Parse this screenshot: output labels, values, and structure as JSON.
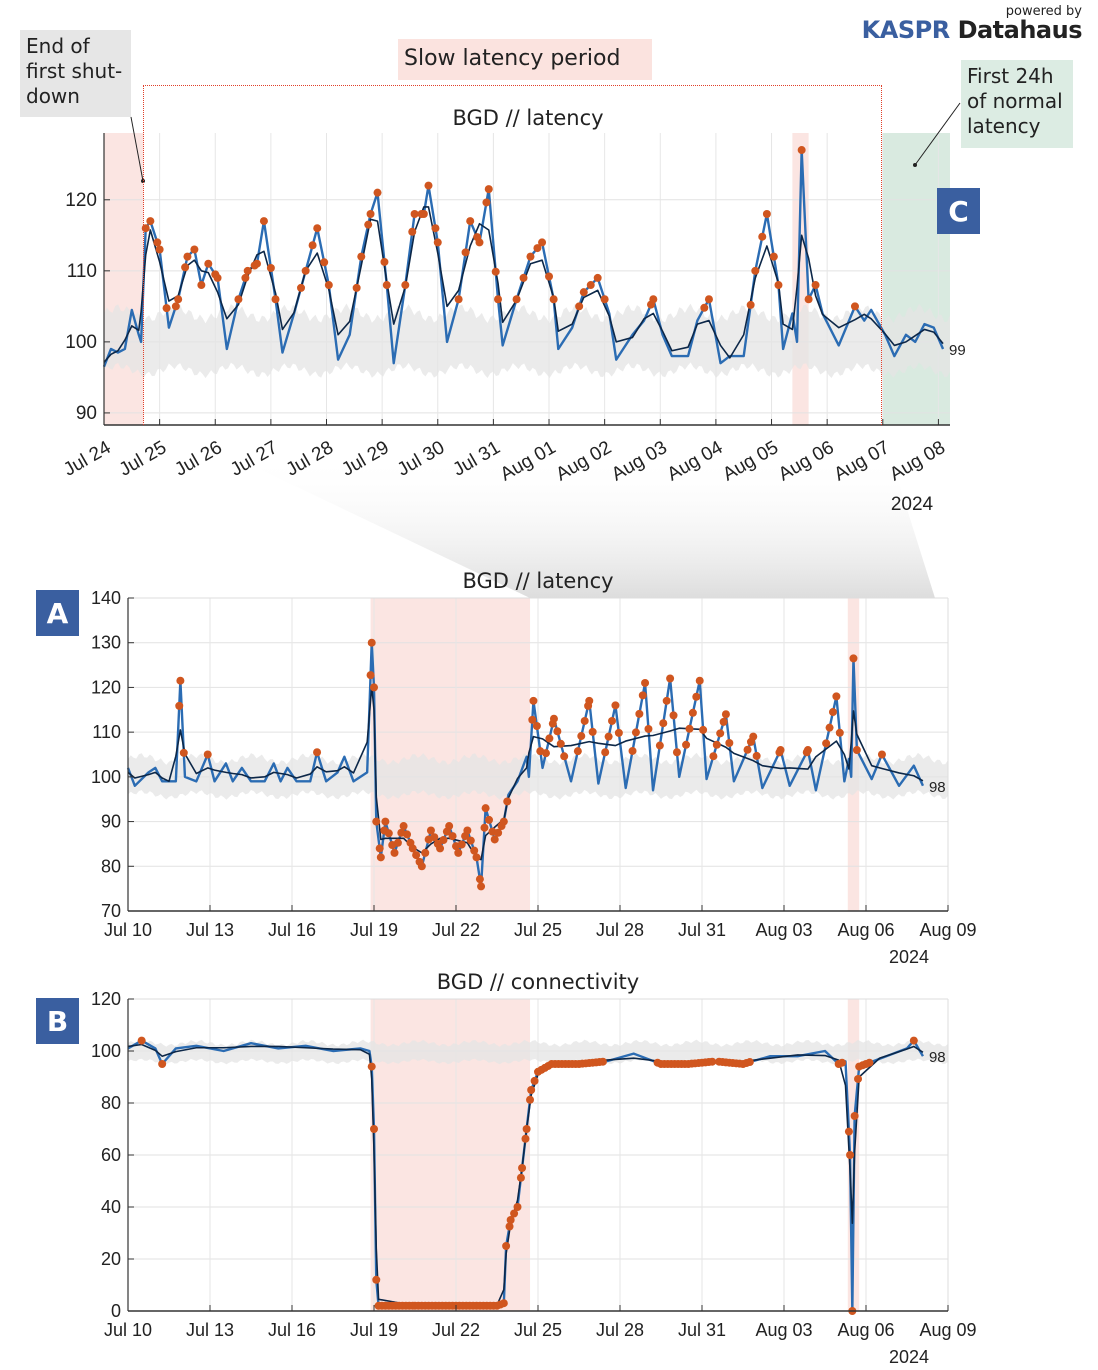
{
  "logo": {
    "powered_by": "powered by",
    "brand_a": "KASPR",
    "brand_b": "Datahaus"
  },
  "annotations": {
    "end_shutdown": "End of first shut-down",
    "slow_period": "Slow latency period",
    "first_24h": "First 24h of normal latency",
    "badge_a": "A",
    "badge_b": "B",
    "badge_c": "C"
  },
  "colors": {
    "raw_line": "#2b6cb3",
    "smooth_line": "#0c2748",
    "anomaly": "#d0561f",
    "band": "#e4e4e4",
    "outage_shade": "#f9dcd8",
    "normal_shade": "#cfe5d8",
    "badge": "#3a5fa0"
  },
  "chart_data": [
    {
      "id": "C",
      "type": "line",
      "title": "BGD // latency",
      "year_label": "2024",
      "xlim": [
        "07-24 00:00",
        "08-08 05:00"
      ],
      "ylim": [
        88.3,
        129.4
      ],
      "yticks": [
        90,
        100,
        110,
        120
      ],
      "xticks": [
        [
          "07-24 00:00",
          "Jul 24"
        ],
        [
          "07-25 00:00",
          "Jul 25"
        ],
        [
          "07-26 00:00",
          "Jul 26"
        ],
        [
          "07-27 00:00",
          "Jul 27"
        ],
        [
          "07-28 00:00",
          "Jul 28"
        ],
        [
          "07-29 00:00",
          "Jul 29"
        ],
        [
          "07-30 00:00",
          "Jul 30"
        ],
        [
          "07-31 00:00",
          "Jul 31"
        ],
        [
          "08-01 00:00",
          "Aug 01"
        ],
        [
          "08-02 00:00",
          "Aug 02"
        ],
        [
          "08-03 00:00",
          "Aug 03"
        ],
        [
          "08-04 00:00",
          "Aug 04"
        ],
        [
          "08-05 00:00",
          "Aug 05"
        ],
        [
          "08-06 00:00",
          "Aug 06"
        ],
        [
          "08-07 00:00",
          "Aug 07"
        ],
        [
          "08-08 00:00",
          "Aug 08"
        ]
      ],
      "tick_rotation": "diagonal",
      "grid": true,
      "band": [
        96,
        104
      ],
      "anomaly_rule": {
        "above": 104.5
      },
      "last_value_label": "99",
      "shaded": [
        {
          "from": "07-24 00:00",
          "to": "07-24 17:00",
          "kind": "outage"
        },
        {
          "from": "08-05 09:00",
          "to": "08-05 16:00",
          "kind": "outage"
        },
        {
          "from": "08-07 00:00",
          "to": "08-08 05:00",
          "kind": "normal"
        }
      ],
      "series": [
        [
          "07-24 00:00",
          96.5
        ],
        [
          "07-24 03:00",
          99
        ],
        [
          "07-24 06:00",
          98.5
        ],
        [
          "07-24 09:00",
          99
        ],
        [
          "07-24 12:00",
          104.5
        ],
        [
          "07-24 15:00",
          101
        ],
        [
          "07-24 16:00",
          100
        ],
        [
          "07-24 18:00",
          116
        ],
        [
          "07-24 20:00",
          117
        ],
        [
          "07-25 00:00",
          113
        ],
        [
          "07-25 04:00",
          102
        ],
        [
          "07-25 08:00",
          106
        ],
        [
          "07-25 12:00",
          112
        ],
        [
          "07-25 15:00",
          113
        ],
        [
          "07-25 18:00",
          108
        ],
        [
          "07-25 21:00",
          111
        ],
        [
          "07-26 01:00",
          109
        ],
        [
          "07-26 05:00",
          99
        ],
        [
          "07-26 10:00",
          106
        ],
        [
          "07-26 14:00",
          110
        ],
        [
          "07-26 18:00",
          111
        ],
        [
          "07-26 21:00",
          117
        ],
        [
          "07-27 02:00",
          106
        ],
        [
          "07-27 05:00",
          98.5
        ],
        [
          "07-27 10:00",
          104
        ],
        [
          "07-27 15:00",
          110
        ],
        [
          "07-27 20:00",
          116
        ],
        [
          "07-28 01:00",
          108
        ],
        [
          "07-28 05:00",
          97.5
        ],
        [
          "07-28 10:00",
          101
        ],
        [
          "07-28 15:00",
          112
        ],
        [
          "07-28 19:00",
          118
        ],
        [
          "07-28 22:00",
          121
        ],
        [
          "07-29 02:00",
          108
        ],
        [
          "07-29 05:00",
          97
        ],
        [
          "07-29 10:00",
          108
        ],
        [
          "07-29 14:00",
          118
        ],
        [
          "07-29 18:00",
          118
        ],
        [
          "07-29 20:00",
          122
        ],
        [
          "07-30 00:00",
          114
        ],
        [
          "07-30 04:00",
          100
        ],
        [
          "07-30 09:00",
          106
        ],
        [
          "07-30 14:00",
          117
        ],
        [
          "07-30 18:00",
          114
        ],
        [
          "07-30 22:00",
          121.5
        ],
        [
          "07-31 02:00",
          106
        ],
        [
          "07-31 04:00",
          99.5
        ],
        [
          "07-31 10:00",
          106
        ],
        [
          "07-31 16:00",
          112
        ],
        [
          "07-31 21:00",
          114
        ],
        [
          "08-01 02:00",
          106
        ],
        [
          "08-01 04:00",
          99
        ],
        [
          "08-01 10:00",
          102
        ],
        [
          "08-01 15:00",
          107
        ],
        [
          "08-01 21:00",
          109
        ],
        [
          "08-02 02:00",
          104
        ],
        [
          "08-02 05:00",
          97.5
        ],
        [
          "08-02 12:00",
          101
        ],
        [
          "08-02 17:00",
          103
        ],
        [
          "08-02 21:00",
          106
        ],
        [
          "08-03 01:00",
          101
        ],
        [
          "08-03 05:00",
          98
        ],
        [
          "08-03 12:00",
          98
        ],
        [
          "08-03 16:00",
          103
        ],
        [
          "08-03 21:00",
          106
        ],
        [
          "08-04 02:00",
          97
        ],
        [
          "08-04 06:00",
          98
        ],
        [
          "08-04 12:00",
          98
        ],
        [
          "08-04 17:00",
          110
        ],
        [
          "08-04 22:00",
          118
        ],
        [
          "08-05 03:00",
          108
        ],
        [
          "08-05 05:00",
          99
        ],
        [
          "08-05 09:00",
          104
        ],
        [
          "08-05 11:00",
          100
        ],
        [
          "08-05 13:00",
          127
        ],
        [
          "08-05 16:00",
          106
        ],
        [
          "08-05 19:00",
          108
        ],
        [
          "08-05 22:00",
          104
        ],
        [
          "08-06 05:00",
          99.5
        ],
        [
          "08-06 12:00",
          105
        ],
        [
          "08-06 16:00",
          103
        ],
        [
          "08-06 19:00",
          104.5
        ],
        [
          "08-07 01:00",
          101
        ],
        [
          "08-07 05:00",
          98
        ],
        [
          "08-07 10:00",
          101
        ],
        [
          "08-07 14:00",
          100
        ],
        [
          "08-07 18:00",
          102.5
        ],
        [
          "08-07 22:00",
          102
        ],
        [
          "08-08 02:00",
          99
        ]
      ]
    },
    {
      "id": "A",
      "type": "line",
      "title": "BGD // latency",
      "year_label": "2024",
      "xlim": [
        "07-10 00:00",
        "08-09 00:00"
      ],
      "ylim": [
        70,
        140
      ],
      "yticks": [
        70,
        80,
        90,
        100,
        110,
        120,
        130,
        140
      ],
      "xticks": [
        [
          "07-10 00:00",
          "Jul 10"
        ],
        [
          "07-13 00:00",
          "Jul 13"
        ],
        [
          "07-16 00:00",
          "Jul 16"
        ],
        [
          "07-19 00:00",
          "Jul 19"
        ],
        [
          "07-22 00:00",
          "Jul 22"
        ],
        [
          "07-25 00:00",
          "Jul 25"
        ],
        [
          "07-28 00:00",
          "Jul 28"
        ],
        [
          "07-31 00:00",
          "Jul 31"
        ],
        [
          "08-03 00:00",
          "Aug 03"
        ],
        [
          "08-06 00:00",
          "Aug 06"
        ],
        [
          "08-09 00:00",
          "Aug 09"
        ]
      ],
      "grid": true,
      "band": [
        96,
        104
      ],
      "anomaly_rule": {
        "above": 104.5,
        "below": 95.5
      },
      "last_value_label": "98",
      "shaded": [
        {
          "from": "07-18 21:00",
          "to": "07-24 17:00",
          "kind": "outage"
        },
        {
          "from": "08-05 08:00",
          "to": "08-05 18:00",
          "kind": "outage"
        }
      ],
      "series": [
        [
          "07-10 00:00",
          102
        ],
        [
          "07-10 06:00",
          98
        ],
        [
          "07-10 18:00",
          101
        ],
        [
          "07-11 00:00",
          102
        ],
        [
          "07-11 06:00",
          99
        ],
        [
          "07-11 12:00",
          99
        ],
        [
          "07-11 18:00",
          99
        ],
        [
          "07-11 22:00",
          121.5
        ],
        [
          "07-12 02:00",
          100
        ],
        [
          "07-12 12:00",
          99
        ],
        [
          "07-12 22:00",
          105
        ],
        [
          "07-13 04:00",
          99
        ],
        [
          "07-13 14:00",
          103
        ],
        [
          "07-13 20:00",
          99
        ],
        [
          "07-14 04:00",
          102
        ],
        [
          "07-14 12:00",
          99
        ],
        [
          "07-15 00:00",
          99
        ],
        [
          "07-15 08:00",
          103
        ],
        [
          "07-15 14:00",
          99
        ],
        [
          "07-15 20:00",
          102
        ],
        [
          "07-16 04:00",
          99
        ],
        [
          "07-16 16:00",
          99
        ],
        [
          "07-16 22:00",
          105.5
        ],
        [
          "07-17 06:00",
          99
        ],
        [
          "07-17 16:00",
          101
        ],
        [
          "07-17 22:00",
          104.5
        ],
        [
          "07-18 06:00",
          99
        ],
        [
          "07-18 18:00",
          101
        ],
        [
          "07-18 22:00",
          130
        ],
        [
          "07-19 00:00",
          120
        ],
        [
          "07-19 02:00",
          90
        ],
        [
          "07-19 06:00",
          82
        ],
        [
          "07-19 10:00",
          90
        ],
        [
          "07-19 18:00",
          83
        ],
        [
          "07-20 02:00",
          89
        ],
        [
          "07-20 10:00",
          84
        ],
        [
          "07-20 18:00",
          80
        ],
        [
          "07-21 02:00",
          88
        ],
        [
          "07-21 10:00",
          84
        ],
        [
          "07-21 18:00",
          89
        ],
        [
          "07-22 02:00",
          83
        ],
        [
          "07-22 10:00",
          88
        ],
        [
          "07-22 18:00",
          82
        ],
        [
          "07-22 22:00",
          75.5
        ],
        [
          "07-23 02:00",
          93
        ],
        [
          "07-23 10:00",
          86
        ],
        [
          "07-23 18:00",
          90
        ],
        [
          "07-23 22:00",
          96
        ],
        [
          "07-24 06:00",
          99
        ],
        [
          "07-24 14:00",
          104.5
        ],
        [
          "07-24 16:00",
          100
        ],
        [
          "07-24 20:00",
          117
        ],
        [
          "07-25 04:00",
          102
        ],
        [
          "07-25 14:00",
          113
        ],
        [
          "07-26 05:00",
          99
        ],
        [
          "07-26 21:00",
          117
        ],
        [
          "07-27 05:00",
          98.5
        ],
        [
          "07-27 20:00",
          116
        ],
        [
          "07-28 05:00",
          97.5
        ],
        [
          "07-28 22:00",
          121
        ],
        [
          "07-29 05:00",
          97
        ],
        [
          "07-29 20:00",
          122
        ],
        [
          "07-30 04:00",
          100
        ],
        [
          "07-30 22:00",
          121.5
        ],
        [
          "07-31 04:00",
          99.5
        ],
        [
          "07-31 21:00",
          114
        ],
        [
          "08-01 04:00",
          99
        ],
        [
          "08-01 21:00",
          109
        ],
        [
          "08-02 05:00",
          97.5
        ],
        [
          "08-02 21:00",
          106
        ],
        [
          "08-03 05:00",
          98
        ],
        [
          "08-03 21:00",
          106
        ],
        [
          "08-04 04:00",
          97
        ],
        [
          "08-04 22:00",
          118
        ],
        [
          "08-05 05:00",
          99
        ],
        [
          "08-05 09:00",
          104
        ],
        [
          "08-05 11:00",
          100
        ],
        [
          "08-05 13:00",
          126.5
        ],
        [
          "08-05 16:00",
          106
        ],
        [
          "08-06 05:00",
          99.5
        ],
        [
          "08-06 14:00",
          105
        ],
        [
          "08-07 05:00",
          98
        ],
        [
          "08-07 18:00",
          102.5
        ],
        [
          "08-08 02:00",
          98
        ]
      ]
    },
    {
      "id": "B",
      "type": "line",
      "title": "BGD // connectivity",
      "year_label": "2024",
      "xlim": [
        "07-10 00:00",
        "08-09 00:00"
      ],
      "ylim": [
        0,
        120
      ],
      "yticks": [
        0,
        20,
        40,
        60,
        80,
        100,
        120
      ],
      "xticks": [
        [
          "07-10 00:00",
          "Jul 10"
        ],
        [
          "07-13 00:00",
          "Jul 13"
        ],
        [
          "07-16 00:00",
          "Jul 16"
        ],
        [
          "07-19 00:00",
          "Jul 19"
        ],
        [
          "07-22 00:00",
          "Jul 22"
        ],
        [
          "07-25 00:00",
          "Jul 25"
        ],
        [
          "07-28 00:00",
          "Jul 28"
        ],
        [
          "07-31 00:00",
          "Jul 31"
        ],
        [
          "08-03 00:00",
          "Aug 03"
        ],
        [
          "08-06 00:00",
          "Aug 06"
        ],
        [
          "08-09 00:00",
          "Aug 09"
        ]
      ],
      "grid": true,
      "band": [
        96,
        103
      ],
      "anomaly_rule": {
        "above": 103.5,
        "below": 96
      },
      "last_value_label": "98",
      "shaded": [
        {
          "from": "07-18 21:00",
          "to": "07-24 17:00",
          "kind": "outage"
        },
        {
          "from": "08-05 08:00",
          "to": "08-05 18:00",
          "kind": "outage"
        }
      ],
      "series": [
        [
          "07-10 00:00",
          101
        ],
        [
          "07-10 12:00",
          104
        ],
        [
          "07-11 00:00",
          101
        ],
        [
          "07-11 06:00",
          95
        ],
        [
          "07-11 18:00",
          101
        ],
        [
          "07-12 12:00",
          102
        ],
        [
          "07-13 12:00",
          100
        ],
        [
          "07-14 12:00",
          103
        ],
        [
          "07-15 12:00",
          101
        ],
        [
          "07-16 12:00",
          102
        ],
        [
          "07-17 12:00",
          100
        ],
        [
          "07-18 12:00",
          101
        ],
        [
          "07-18 20:00",
          100
        ],
        [
          "07-18 22:00",
          94
        ],
        [
          "07-19 00:00",
          70
        ],
        [
          "07-19 02:00",
          12
        ],
        [
          "07-19 04:00",
          2
        ],
        [
          "07-20 12:00",
          2
        ],
        [
          "07-21 12:00",
          2
        ],
        [
          "07-22 12:00",
          2
        ],
        [
          "07-23 12:00",
          2
        ],
        [
          "07-23 18:00",
          3
        ],
        [
          "07-23 20:00",
          25
        ],
        [
          "07-24 00:00",
          35
        ],
        [
          "07-24 06:00",
          40
        ],
        [
          "07-24 10:00",
          55
        ],
        [
          "07-24 14:00",
          70
        ],
        [
          "07-24 18:00",
          85
        ],
        [
          "07-25 00:00",
          92
        ],
        [
          "07-25 12:00",
          95
        ],
        [
          "07-26 12:00",
          95
        ],
        [
          "07-27 12:00",
          96
        ],
        [
          "07-28 12:00",
          99
        ],
        [
          "07-29 12:00",
          95
        ],
        [
          "07-30 12:00",
          95
        ],
        [
          "07-31 12:00",
          96
        ],
        [
          "08-01 12:00",
          95
        ],
        [
          "08-02 12:00",
          98
        ],
        [
          "08-03 12:00",
          98
        ],
        [
          "08-04 12:00",
          100
        ],
        [
          "08-05 00:00",
          95
        ],
        [
          "08-05 06:00",
          96
        ],
        [
          "08-05 10:00",
          60
        ],
        [
          "08-05 12:00",
          0
        ],
        [
          "08-05 14:00",
          75
        ],
        [
          "08-05 18:00",
          94
        ],
        [
          "08-06 12:00",
          97
        ],
        [
          "08-07 12:00",
          101
        ],
        [
          "08-07 18:00",
          104
        ],
        [
          "08-08 02:00",
          98
        ]
      ]
    }
  ]
}
